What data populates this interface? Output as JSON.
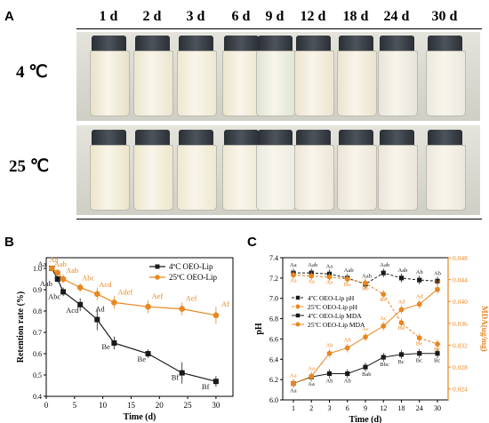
{
  "panels": {
    "a_label": "A",
    "b_label": "B",
    "c_label": "C"
  },
  "photo": {
    "days": [
      "1 d",
      "2 d",
      "3 d",
      "6 d",
      "9 d",
      "12 d",
      "18 d",
      "24 d",
      "30 d"
    ],
    "temperatures": [
      "4 ℃",
      "25 ℃"
    ],
    "row_4c_colors": [
      "#e8e1c9",
      "#ebe6cf",
      "#eee8d0",
      "#ece6cc",
      "#dfe5d4",
      "#ede4cf",
      "#ebe3ce",
      "#e7e4dc",
      "#ebe8df"
    ],
    "row_25c_colors": [
      "#ece5c9",
      "#ede7cc",
      "#eee8cf",
      "#eee9d2",
      "#ecebe3",
      "#ece6d7",
      "#ebe5d8",
      "#ebe5dc",
      "#ece7de"
    ]
  },
  "chart_data": [
    {
      "type": "line",
      "panel": "B",
      "xlabel": "Time (d)",
      "ylabel": "Retention rate (%)",
      "xlim": [
        0,
        33
      ],
      "ylim": [
        0.4,
        1.05
      ],
      "xticks": [
        0,
        5,
        10,
        15,
        20,
        25,
        30
      ],
      "yticks": [
        0.4,
        0.5,
        0.6,
        0.7,
        0.8,
        0.9,
        1.0
      ],
      "legend_position": "top-right",
      "x": [
        1,
        2,
        3,
        6,
        9,
        12,
        18,
        24,
        30
      ],
      "series": [
        {
          "name": "4ºC  OEO-Lip",
          "color": "#1a1a1a",
          "marker": "square",
          "values": [
            1.0,
            0.95,
            0.89,
            0.83,
            0.76,
            0.65,
            0.6,
            0.51,
            0.47
          ],
          "errors": [
            0.01,
            0.015,
            0.02,
            0.03,
            0.05,
            0.03,
            0.02,
            0.05,
            0.025
          ],
          "labels": [
            "Aa",
            "Aab",
            "Abc",
            "Acd",
            "Ad",
            "Be",
            "Be",
            "Bf",
            "Bf"
          ]
        },
        {
          "name": "25ºC  OEO-Lip",
          "color": "#e8871e",
          "marker": "circle",
          "values": [
            1.0,
            0.98,
            0.95,
            0.91,
            0.88,
            0.84,
            0.82,
            0.81,
            0.78
          ],
          "errors": [
            0.01,
            0.015,
            0.02,
            0.02,
            0.03,
            0.03,
            0.03,
            0.03,
            0.04
          ],
          "labels": [
            "Aa",
            "Aab",
            "Aab",
            "Abc",
            "Acd",
            "Adef",
            "Aef",
            "Aef",
            "Af"
          ]
        }
      ]
    },
    {
      "type": "line",
      "panel": "C",
      "xlabel": "Time (d)",
      "ylabel": "pH",
      "y2label": "MDA(ug/mg)",
      "xcategories": [
        "1",
        "2",
        "3",
        "6",
        "9",
        "12",
        "18",
        "24",
        "30"
      ],
      "ylim": [
        6.0,
        7.4
      ],
      "yticks": [
        6.0,
        6.2,
        6.4,
        6.6,
        6.8,
        7.0,
        7.2,
        7.4
      ],
      "y2lim": [
        0.022,
        0.048
      ],
      "y2ticks": [
        0.024,
        0.028,
        0.032,
        0.036,
        0.04,
        0.044,
        0.048
      ],
      "legend_position": "center-left",
      "series": [
        {
          "name": "4ºC OEO-Lip pH",
          "axis": "left",
          "color": "#1a1a1a",
          "marker": "square",
          "dashed": true,
          "values": [
            7.25,
            7.25,
            7.24,
            7.2,
            7.14,
            7.25,
            7.2,
            7.18,
            7.17
          ],
          "labels": [
            "Aa",
            "Aab",
            "Aa",
            "Aab",
            "Aab",
            "Aab",
            "Aab",
            "Ab",
            "Ab"
          ]
        },
        {
          "name": "25ºC OEO-Lip pH",
          "axis": "left",
          "color": "#e8871e",
          "marker": "circle",
          "dashed": true,
          "values": [
            7.23,
            7.22,
            7.21,
            7.19,
            7.15,
            7.04,
            6.76,
            6.61,
            6.55
          ],
          "labels": [
            "Aa",
            "Aa",
            "Aa",
            "Ba",
            "Bb",
            "Bc",
            "Bd",
            "Be",
            "Bf"
          ]
        },
        {
          "name": "4ºC OEO-Lip MDA",
          "axis": "right",
          "color": "#1a1a1a",
          "marker": "square",
          "dashed": false,
          "values": [
            0.025,
            0.0262,
            0.0268,
            0.0268,
            0.028,
            0.0298,
            0.0303,
            0.0305,
            0.0305
          ],
          "labels": [
            "Aa",
            "Aa",
            "Ab",
            "Ab",
            "Bab",
            "Bbc",
            "Bc",
            "Bc",
            "Bc"
          ]
        },
        {
          "name": "25ºC OEO-Lip MDA",
          "axis": "right",
          "color": "#e8871e",
          "marker": "circle",
          "dashed": false,
          "values": [
            0.025,
            0.0263,
            0.0305,
            0.0315,
            0.0335,
            0.0355,
            0.0385,
            0.0395,
            0.0422
          ],
          "labels": [
            "Aa",
            "Aa",
            "Ab",
            "Ab",
            "Ac",
            "Ac",
            "Ad",
            "Ad",
            "Ae"
          ]
        }
      ]
    }
  ]
}
